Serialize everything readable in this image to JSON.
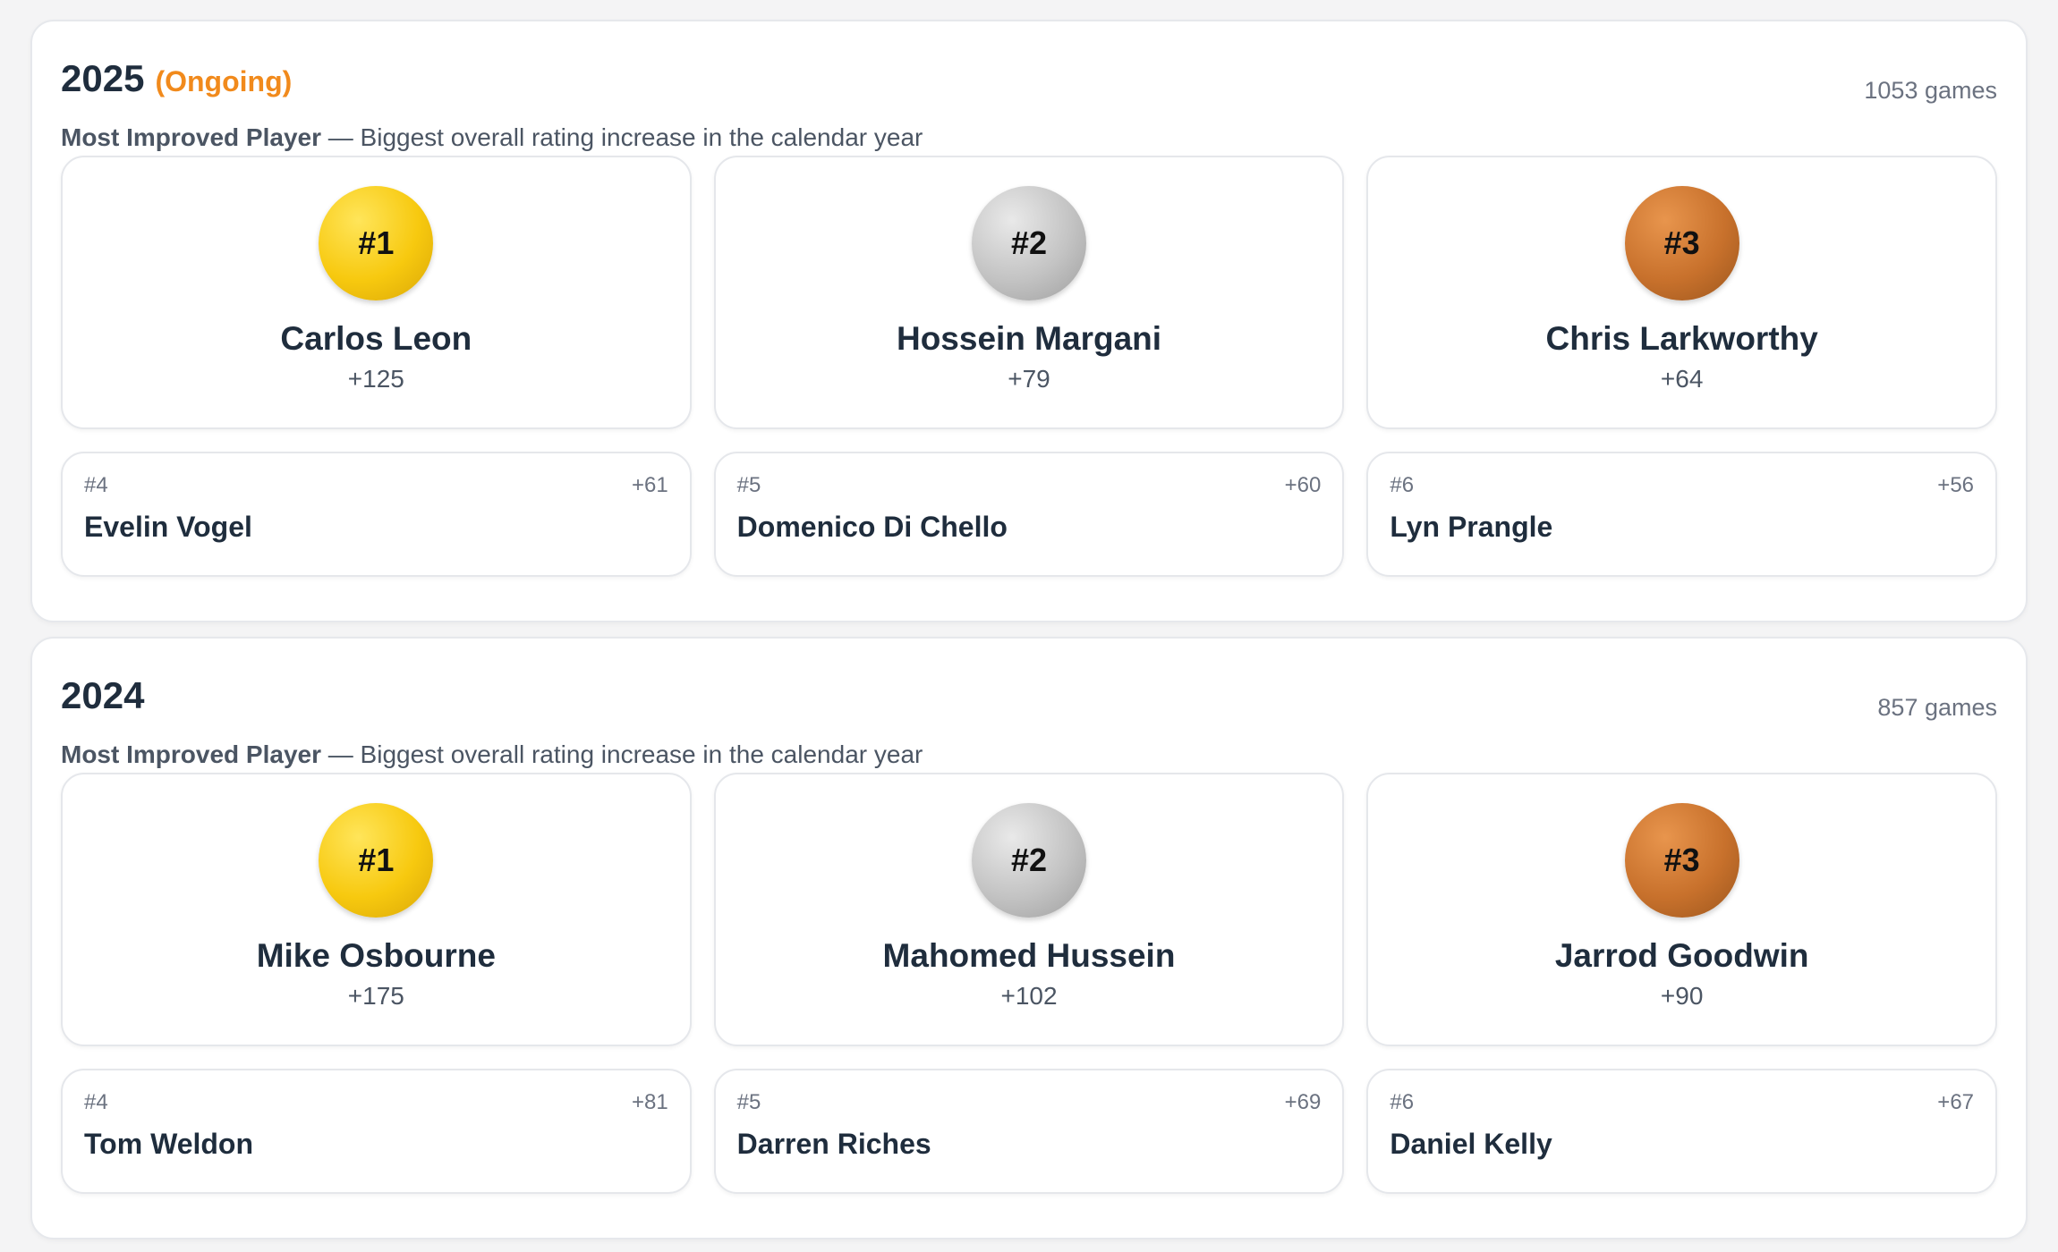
{
  "years": [
    {
      "year": "2025",
      "status": "(Ongoing)",
      "games": "1053 games",
      "award_name": "Most Improved Player",
      "award_desc": " — Biggest overall rating increase in the calendar year",
      "podium": [
        {
          "rank": "#1",
          "name": "Carlos Leon",
          "delta": "+125"
        },
        {
          "rank": "#2",
          "name": "Hossein Margani",
          "delta": "+79"
        },
        {
          "rank": "#3",
          "name": "Chris Larkworthy",
          "delta": "+64"
        }
      ],
      "runners": [
        {
          "rank": "#4",
          "name": "Evelin Vogel",
          "delta": "+61"
        },
        {
          "rank": "#5",
          "name": "Domenico Di Chello",
          "delta": "+60"
        },
        {
          "rank": "#6",
          "name": "Lyn Prangle",
          "delta": "+56"
        }
      ]
    },
    {
      "year": "2024",
      "status": "",
      "games": "857 games",
      "award_name": "Most Improved Player",
      "award_desc": " — Biggest overall rating increase in the calendar year",
      "podium": [
        {
          "rank": "#1",
          "name": "Mike Osbourne",
          "delta": "+175"
        },
        {
          "rank": "#2",
          "name": "Mahomed Hussein",
          "delta": "+102"
        },
        {
          "rank": "#3",
          "name": "Jarrod Goodwin",
          "delta": "+90"
        }
      ],
      "runners": [
        {
          "rank": "#4",
          "name": "Tom Weldon",
          "delta": "+81"
        },
        {
          "rank": "#5",
          "name": "Darren Riches",
          "delta": "+69"
        },
        {
          "rank": "#6",
          "name": "Daniel Kelly",
          "delta": "+67"
        }
      ]
    }
  ],
  "colors": {
    "status_orange": "#f18a1c",
    "gold": "#f7c90f",
    "silver": "#c3c3c3",
    "bronze": "#c8712c"
  }
}
